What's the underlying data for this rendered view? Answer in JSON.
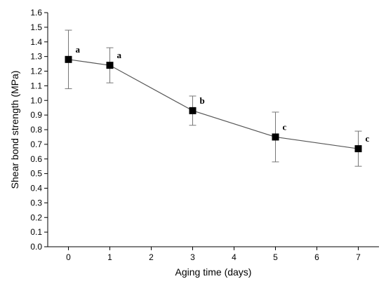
{
  "chart_data": {
    "type": "line",
    "title": "",
    "xlabel": "Aging time (days)",
    "ylabel": "Shear bond strength (MPa)",
    "xlim": [
      -0.5,
      7.5
    ],
    "ylim": [
      0.0,
      1.6
    ],
    "x_ticks": [
      0,
      1,
      2,
      3,
      4,
      5,
      6,
      7
    ],
    "x_tick_labels": [
      "0",
      "1",
      "2",
      "3",
      "4",
      "5",
      "6",
      "7"
    ],
    "y_ticks": [
      0.0,
      0.1,
      0.2,
      0.3,
      0.4,
      0.5,
      0.6,
      0.7,
      0.8,
      0.9,
      1.0,
      1.1,
      1.2,
      1.3,
      1.4,
      1.5,
      1.6
    ],
    "y_tick_labels": [
      "0.0",
      "0.1",
      "0.2",
      "0.3",
      "0.4",
      "0.5",
      "0.6",
      "0.7",
      "0.8",
      "0.9",
      "1.0",
      "1.1",
      "1.2",
      "1.3",
      "1.4",
      "1.5",
      "1.6"
    ],
    "grid": false,
    "legend": "none",
    "series": [
      {
        "marker": "square",
        "color": "#000000",
        "points": [
          {
            "x": 0,
            "y": 1.28,
            "err_low": 1.08,
            "err_high": 1.48,
            "label": "a"
          },
          {
            "x": 1,
            "y": 1.24,
            "err_low": 1.12,
            "err_high": 1.36,
            "label": "a"
          },
          {
            "x": 3,
            "y": 0.93,
            "err_low": 0.83,
            "err_high": 1.03,
            "label": "b"
          },
          {
            "x": 5,
            "y": 0.75,
            "err_low": 0.58,
            "err_high": 0.92,
            "label": "c"
          },
          {
            "x": 7,
            "y": 0.67,
            "err_low": 0.55,
            "err_high": 0.79,
            "label": "c"
          }
        ]
      }
    ]
  }
}
